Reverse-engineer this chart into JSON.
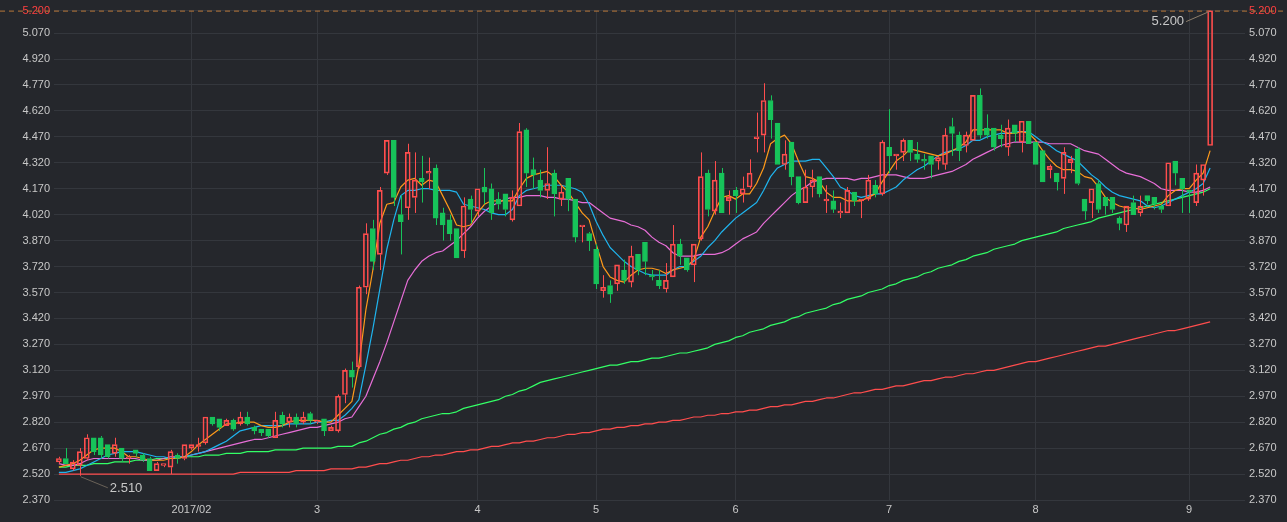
{
  "chart_data": {
    "type": "candlestick",
    "categories": [
      null,
      null,
      null,
      null,
      null,
      null,
      null,
      null,
      null,
      null,
      null,
      null,
      null,
      null,
      null,
      null,
      null,
      null,
      null,
      "2017/02",
      null,
      null,
      null,
      null,
      null,
      null,
      null,
      null,
      null,
      null,
      null,
      null,
      null,
      null,
      null,
      null,
      null,
      "3",
      null,
      null,
      null,
      null,
      null,
      null,
      null,
      null,
      null,
      null,
      null,
      null,
      null,
      null,
      null,
      null,
      null,
      null,
      null,
      null,
      null,
      null,
      "4",
      null,
      null,
      null,
      null,
      null,
      null,
      null,
      null,
      null,
      null,
      null,
      null,
      null,
      null,
      null,
      null,
      "5",
      null,
      null,
      null,
      null,
      null,
      null,
      null,
      null,
      null,
      null,
      null,
      null,
      null,
      null,
      null,
      null,
      null,
      null,
      null,
      "6",
      null,
      null,
      null,
      null,
      null,
      null,
      null,
      null,
      null,
      null,
      null,
      null,
      null,
      null,
      null,
      null,
      null,
      null,
      null,
      null,
      null,
      "7",
      null,
      null,
      null,
      null,
      null,
      null,
      null,
      null,
      null,
      null,
      null,
      null,
      null,
      null,
      null,
      null,
      null,
      null,
      null,
      null,
      "8",
      null,
      null,
      null,
      null,
      null,
      null,
      null,
      null,
      null,
      null,
      null,
      null,
      null,
      null,
      null,
      null,
      null,
      null,
      null,
      null,
      null,
      "9",
      null,
      null,
      null
    ],
    "ohlc": [
      [
        2.59,
        2.62,
        2.58,
        2.61
      ],
      [
        2.61,
        2.67,
        2.58,
        2.58
      ],
      [
        2.55,
        2.6,
        2.54,
        2.59
      ],
      [
        2.57,
        2.67,
        2.51,
        2.65
      ],
      [
        2.61,
        2.75,
        2.6,
        2.73
      ],
      [
        2.73,
        2.73,
        2.63,
        2.65
      ],
      [
        2.73,
        2.74,
        2.61,
        2.63
      ],
      [
        2.69,
        2.69,
        2.61,
        2.62
      ],
      [
        2.64,
        2.73,
        2.62,
        2.69
      ],
      [
        2.67,
        2.67,
        2.59,
        2.61
      ],
      [
        2.61,
        2.63,
        2.58,
        2.62
      ],
      [
        2.66,
        2.66,
        2.62,
        2.64
      ],
      [
        2.63,
        2.64,
        2.59,
        2.6
      ],
      [
        2.61,
        2.62,
        2.54,
        2.54
      ],
      [
        2.54,
        2.59,
        2.54,
        2.58
      ],
      [
        2.57,
        2.58,
        2.56,
        2.58
      ],
      [
        2.56,
        2.66,
        2.52,
        2.65
      ],
      [
        2.63,
        2.64,
        2.58,
        2.61
      ],
      [
        2.61,
        2.69,
        2.6,
        2.69
      ],
      [
        2.67,
        2.69,
        2.66,
        2.69
      ],
      [
        2.68,
        2.73,
        2.65,
        2.69
      ],
      [
        2.7,
        2.85,
        2.69,
        2.85
      ],
      [
        2.85,
        2.85,
        2.8,
        2.81
      ],
      [
        2.84,
        2.84,
        2.77,
        2.79
      ],
      [
        2.8,
        2.84,
        2.8,
        2.83
      ],
      [
        2.83,
        2.84,
        2.77,
        2.78
      ],
      [
        2.81,
        2.88,
        2.8,
        2.85
      ],
      [
        2.85,
        2.88,
        2.8,
        2.81
      ],
      [
        2.79,
        2.8,
        2.75,
        2.77
      ],
      [
        2.78,
        2.78,
        2.74,
        2.76
      ],
      [
        2.78,
        2.78,
        2.73,
        2.74
      ],
      [
        2.73,
        2.88,
        2.73,
        2.83
      ],
      [
        2.86,
        2.88,
        2.79,
        2.81
      ],
      [
        2.82,
        2.87,
        2.79,
        2.85
      ],
      [
        2.85,
        2.87,
        2.79,
        2.81
      ],
      [
        2.82,
        2.88,
        2.81,
        2.85
      ],
      [
        2.87,
        2.88,
        2.81,
        2.83
      ],
      [
        2.82,
        2.83,
        2.81,
        2.83
      ],
      [
        2.84,
        2.84,
        2.74,
        2.77
      ],
      [
        2.77,
        2.8,
        2.77,
        2.79
      ],
      [
        2.77,
        2.98,
        2.76,
        2.97
      ],
      [
        2.98,
        3.13,
        2.93,
        3.12
      ],
      [
        3.12,
        3.17,
        3.02,
        3.08
      ],
      [
        3.14,
        3.61,
        3.13,
        3.6
      ],
      [
        3.6,
        3.97,
        3.56,
        3.91
      ],
      [
        3.94,
        3.99,
        3.7,
        3.75
      ],
      [
        3.79,
        4.18,
        3.7,
        4.16
      ],
      [
        4.26,
        4.45,
        4.25,
        4.45
      ],
      [
        4.45,
        4.45,
        4.07,
        4.12
      ],
      [
        4.02,
        4.13,
        3.79,
        3.98
      ],
      [
        4.06,
        4.43,
        3.99,
        4.38
      ],
      [
        4.12,
        4.38,
        4.03,
        4.22
      ],
      [
        4.23,
        4.36,
        4.09,
        4.21
      ],
      [
        4.26,
        4.35,
        4.17,
        4.27
      ],
      [
        4.29,
        4.31,
        3.96,
        4.0
      ],
      [
        4.03,
        4.06,
        3.87,
        3.96
      ],
      [
        3.99,
        4.02,
        3.87,
        3.91
      ],
      [
        3.94,
        3.94,
        3.77,
        3.77
      ],
      [
        3.81,
        4.12,
        3.77,
        4.07
      ],
      [
        4.11,
        4.13,
        3.97,
        4.05
      ],
      [
        4.04,
        4.17,
        4.01,
        4.17
      ],
      [
        4.18,
        4.29,
        4.08,
        4.15
      ],
      [
        4.17,
        4.2,
        3.99,
        4.03
      ],
      [
        4.11,
        4.15,
        4.05,
        4.08
      ],
      [
        4.14,
        4.14,
        4.01,
        4.05
      ],
      [
        3.99,
        4.16,
        3.98,
        4.12
      ],
      [
        4.07,
        4.55,
        4.07,
        4.5
      ],
      [
        4.51,
        4.52,
        4.18,
        4.26
      ],
      [
        4.28,
        4.35,
        4.17,
        4.25
      ],
      [
        4.22,
        4.28,
        4.12,
        4.16
      ],
      [
        4.16,
        4.41,
        4.11,
        4.2
      ],
      [
        4.26,
        4.28,
        4.01,
        4.14
      ],
      [
        4.11,
        4.19,
        4.07,
        4.15
      ],
      [
        4.23,
        4.23,
        4.04,
        4.11
      ],
      [
        4.11,
        4.11,
        3.86,
        3.89
      ],
      [
        3.95,
        3.96,
        3.86,
        3.96
      ],
      [
        3.91,
        3.92,
        3.81,
        3.87
      ],
      [
        3.82,
        3.85,
        3.59,
        3.62
      ],
      [
        3.58,
        3.67,
        3.54,
        3.6
      ],
      [
        3.61,
        3.64,
        3.51,
        3.56
      ],
      [
        3.62,
        3.73,
        3.58,
        3.73
      ],
      [
        3.7,
        3.76,
        3.62,
        3.64
      ],
      [
        3.63,
        3.84,
        3.6,
        3.78
      ],
      [
        3.79,
        3.79,
        3.67,
        3.7
      ],
      [
        3.86,
        3.86,
        3.67,
        3.75
      ],
      [
        3.67,
        3.7,
        3.64,
        3.66
      ],
      [
        3.64,
        3.7,
        3.59,
        3.61
      ],
      [
        3.59,
        3.74,
        3.57,
        3.64
      ],
      [
        3.66,
        3.96,
        3.66,
        3.85
      ],
      [
        3.85,
        3.88,
        3.73,
        3.78
      ],
      [
        3.77,
        3.77,
        3.69,
        3.7
      ],
      [
        3.73,
        3.85,
        3.63,
        3.85
      ],
      [
        3.88,
        4.38,
        3.87,
        4.24
      ],
      [
        4.26,
        4.28,
        4.01,
        4.05
      ],
      [
        4.04,
        4.33,
        4.02,
        4.22
      ],
      [
        4.26,
        4.29,
        4.03,
        4.03
      ],
      [
        4.1,
        4.16,
        4.02,
        4.12
      ],
      [
        4.16,
        4.18,
        4.03,
        4.13
      ],
      [
        4.14,
        4.24,
        4.09,
        4.17
      ],
      [
        4.18,
        4.34,
        4.17,
        4.26
      ],
      [
        4.46,
        4.61,
        4.38,
        4.47
      ],
      [
        4.48,
        4.78,
        4.38,
        4.68
      ],
      [
        4.68,
        4.71,
        4.46,
        4.57
      ],
      [
        4.55,
        4.55,
        4.31,
        4.31
      ],
      [
        4.31,
        4.45,
        4.28,
        4.37
      ],
      [
        4.44,
        4.44,
        4.19,
        4.24
      ],
      [
        4.24,
        4.24,
        4.08,
        4.09
      ],
      [
        4.09,
        4.28,
        4.09,
        4.18
      ],
      [
        4.18,
        4.28,
        4.12,
        4.22
      ],
      [
        4.24,
        4.24,
        4.12,
        4.14
      ],
      [
        4.1,
        4.19,
        4.03,
        4.11
      ],
      [
        4.1,
        4.16,
        4.03,
        4.05
      ],
      [
        4.03,
        4.09,
        4.0,
        4.04
      ],
      [
        4.03,
        4.18,
        4.03,
        4.16
      ],
      [
        4.15,
        4.15,
        4.07,
        4.1
      ],
      [
        4.1,
        4.11,
        4.0,
        4.11
      ],
      [
        4.11,
        4.25,
        4.1,
        4.22
      ],
      [
        4.19,
        4.22,
        4.12,
        4.14
      ],
      [
        4.14,
        4.45,
        4.13,
        4.44
      ],
      [
        4.41,
        4.63,
        4.26,
        4.36
      ],
      [
        4.36,
        4.37,
        4.28,
        4.37
      ],
      [
        4.38,
        4.46,
        4.33,
        4.45
      ],
      [
        4.45,
        4.45,
        4.33,
        4.38
      ],
      [
        4.37,
        4.44,
        4.32,
        4.34
      ],
      [
        4.34,
        4.37,
        4.28,
        4.33
      ],
      [
        4.36,
        4.36,
        4.23,
        4.31
      ],
      [
        4.33,
        4.36,
        4.28,
        4.35
      ],
      [
        4.31,
        4.52,
        4.28,
        4.48
      ],
      [
        4.53,
        4.58,
        4.36,
        4.49
      ],
      [
        4.48,
        4.5,
        4.33,
        4.39
      ],
      [
        4.42,
        4.5,
        4.38,
        4.48
      ],
      [
        4.45,
        4.71,
        4.45,
        4.71
      ],
      [
        4.71,
        4.75,
        4.46,
        4.48
      ],
      [
        4.52,
        4.6,
        4.46,
        4.48
      ],
      [
        4.52,
        4.52,
        4.39,
        4.41
      ],
      [
        4.48,
        4.54,
        4.41,
        4.46
      ],
      [
        4.41,
        4.57,
        4.36,
        4.52
      ],
      [
        4.54,
        4.54,
        4.44,
        4.49
      ],
      [
        4.44,
        4.56,
        4.38,
        4.56
      ],
      [
        4.56,
        4.56,
        4.43,
        4.43
      ],
      [
        4.44,
        4.44,
        4.31,
        4.31
      ],
      [
        4.39,
        4.39,
        4.21,
        4.21
      ],
      [
        4.28,
        4.31,
        4.23,
        4.3
      ],
      [
        4.26,
        4.26,
        4.16,
        4.21
      ],
      [
        4.23,
        4.41,
        4.14,
        4.38
      ],
      [
        4.32,
        4.36,
        4.26,
        4.34
      ],
      [
        4.4,
        4.41,
        4.19,
        4.2
      ],
      [
        4.11,
        4.11,
        3.99,
        4.04
      ],
      [
        4.09,
        4.17,
        4.0,
        4.17
      ],
      [
        4.2,
        4.22,
        4.03,
        4.05
      ],
      [
        4.12,
        4.12,
        4.02,
        4.07
      ],
      [
        4.12,
        4.12,
        4.03,
        4.05
      ],
      [
        4.0,
        4.01,
        3.93,
        3.97
      ],
      [
        3.96,
        4.07,
        3.92,
        4.07
      ],
      [
        4.09,
        4.13,
        4.02,
        4.02
      ],
      [
        4.03,
        4.13,
        4.01,
        4.07
      ],
      [
        4.13,
        4.13,
        4.08,
        4.1
      ],
      [
        4.12,
        4.12,
        4.05,
        4.08
      ],
      [
        4.07,
        4.08,
        4.03,
        4.05
      ],
      [
        4.07,
        4.32,
        4.07,
        4.32
      ],
      [
        4.33,
        4.33,
        4.19,
        4.26
      ],
      [
        4.23,
        4.23,
        4.03,
        4.17
      ],
      [
        4.16,
        4.16,
        4.03,
        4.15
      ],
      [
        4.09,
        4.31,
        4.07,
        4.26
      ],
      [
        4.22,
        4.31,
        4.13,
        4.31
      ],
      [
        4.42,
        5.2,
        4.42,
        5.2
      ]
    ],
    "colors": [
      "#ff4d4d",
      "#17c35a",
      "#ff4d4d",
      "#ff4d4d",
      "#ff4d4d",
      "#17c35a",
      "#17c35a",
      "#17c35a",
      "#ff4d4d",
      "#17c35a",
      "#ff4d4d",
      "#17c35a",
      "#17c35a",
      "#17c35a",
      "#ff4d4d",
      "#ff4d4d",
      "#ff4d4d",
      "#17c35a",
      "#ff4d4d",
      "#ff4d4d",
      "#ff4d4d",
      "#ff4d4d",
      "#17c35a",
      "#17c35a",
      "#ff4d4d",
      "#17c35a",
      "#ff4d4d",
      "#17c35a",
      "#17c35a",
      "#17c35a",
      "#17c35a",
      "#ff4d4d",
      "#17c35a",
      "#ff4d4d",
      "#17c35a",
      "#ff4d4d",
      "#17c35a",
      "#ff4d4d",
      "#17c35a",
      "#ff4d4d",
      "#ff4d4d",
      "#ff4d4d",
      "#17c35a",
      "#ff4d4d",
      "#ff4d4d",
      "#17c35a",
      "#ff4d4d",
      "#ff4d4d",
      "#17c35a",
      "#17c35a",
      "#ff4d4d",
      "#ff4d4d",
      "#17c35a",
      "#ff4d4d",
      "#17c35a",
      "#17c35a",
      "#17c35a",
      "#17c35a",
      "#ff4d4d",
      "#17c35a",
      "#ff4d4d",
      "#17c35a",
      "#17c35a",
      "#17c35a",
      "#17c35a",
      "#ff4d4d",
      "#ff4d4d",
      "#17c35a",
      "#17c35a",
      "#17c35a",
      "#ff4d4d",
      "#17c35a",
      "#ff4d4d",
      "#17c35a",
      "#17c35a",
      "#ff4d4d",
      "#17c35a",
      "#17c35a",
      "#ff4d4d",
      "#17c35a",
      "#ff4d4d",
      "#17c35a",
      "#ff4d4d",
      "#17c35a",
      "#17c35a",
      "#17c35a",
      "#17c35a",
      "#ff4d4d",
      "#ff4d4d",
      "#17c35a",
      "#17c35a",
      "#ff4d4d",
      "#ff4d4d",
      "#17c35a",
      "#ff4d4d",
      "#17c35a",
      "#ff4d4d",
      "#17c35a",
      "#ff4d4d",
      "#ff4d4d",
      "#ff4d4d",
      "#ff4d4d",
      "#17c35a",
      "#17c35a",
      "#ff4d4d",
      "#17c35a",
      "#17c35a",
      "#ff4d4d",
      "#ff4d4d",
      "#17c35a",
      "#ff4d4d",
      "#17c35a",
      "#ff4d4d",
      "#ff4d4d",
      "#17c35a",
      "#ff4d4d",
      "#ff4d4d",
      "#17c35a",
      "#ff4d4d",
      "#17c35a",
      "#ff4d4d",
      "#ff4d4d",
      "#17c35a",
      "#17c35a",
      "#17c35a",
      "#17c35a",
      "#ff4d4d",
      "#ff4d4d",
      "#17c35a",
      "#17c35a",
      "#ff4d4d",
      "#ff4d4d",
      "#17c35a",
      "#17c35a",
      "#17c35a",
      "#17c35a",
      "#ff4d4d",
      "#17c35a",
      "#ff4d4d",
      "#17c35a",
      "#17c35a",
      "#17c35a",
      "#ff4d4d",
      "#17c35a",
      "#ff4d4d",
      "#ff4d4d",
      "#17c35a",
      "#17c35a",
      "#ff4d4d",
      "#17c35a",
      "#17c35a",
      "#17c35a",
      "#17c35a",
      "#ff4d4d",
      "#17c35a",
      "#ff4d4d",
      "#17c35a",
      "#17c35a",
      "#17c35a",
      "#ff4d4d",
      "#17c35a",
      "#17c35a",
      "#17c35a",
      "#ff4d4d",
      "#ff4d4d",
      "#ff4d4d"
    ],
    "series": [
      {
        "type": "line",
        "color": "#ff9a1a",
        "values": [
          2.56,
          2.57,
          2.58,
          2.6,
          2.63,
          2.66,
          2.67,
          2.67,
          2.67,
          2.65,
          2.62,
          2.62,
          2.61,
          2.6,
          2.6,
          2.6,
          2.61,
          2.61,
          2.62,
          2.65,
          2.69,
          2.72,
          2.75,
          2.78,
          2.81,
          2.81,
          2.82,
          2.82,
          2.82,
          2.8,
          2.79,
          2.79,
          2.8,
          2.82,
          2.83,
          2.83,
          2.83,
          2.83,
          2.82,
          2.82,
          2.86,
          2.9,
          2.94,
          3.15,
          3.47,
          3.7,
          3.97,
          4.08,
          4.09,
          4.18,
          4.22,
          4.23,
          4.19,
          4.22,
          4.21,
          4.13,
          4.05,
          3.96,
          3.95,
          3.96,
          4.03,
          4.08,
          4.1,
          4.1,
          4.1,
          4.1,
          4.17,
          4.23,
          4.25,
          4.26,
          4.27,
          4.24,
          4.19,
          4.15,
          4.09,
          4.03,
          3.99,
          3.85,
          3.72,
          3.66,
          3.64,
          3.63,
          3.67,
          3.7,
          3.71,
          3.71,
          3.7,
          3.68,
          3.7,
          3.71,
          3.72,
          3.76,
          3.89,
          3.95,
          4.04,
          4.12,
          4.13,
          4.11,
          4.14,
          4.14,
          4.2,
          4.29,
          4.43,
          4.46,
          4.48,
          4.43,
          4.33,
          4.24,
          4.23,
          4.21,
          4.15,
          4.12,
          4.12,
          4.1,
          4.1,
          4.1,
          4.12,
          4.14,
          4.21,
          4.27,
          4.33,
          4.36,
          4.4,
          4.39,
          4.38,
          4.37,
          4.36,
          4.37,
          4.39,
          4.41,
          4.44,
          4.51,
          4.51,
          4.51,
          4.51,
          4.51,
          4.49,
          4.49,
          4.5,
          4.49,
          4.45,
          4.39,
          4.34,
          4.3,
          4.28,
          4.28,
          4.27,
          4.24,
          4.23,
          4.18,
          4.12,
          4.09,
          4.07,
          4.06,
          4.06,
          4.05,
          4.06,
          4.07,
          4.08,
          4.13,
          4.16,
          4.17,
          4.17,
          4.22,
          4.26,
          4.39
        ]
      },
      {
        "type": "line",
        "color": "#1fb4ee",
        "values": [
          2.53,
          2.53,
          2.54,
          2.55,
          2.57,
          2.59,
          2.61,
          2.63,
          2.64,
          2.65,
          2.65,
          2.65,
          2.64,
          2.63,
          2.62,
          2.62,
          2.61,
          2.62,
          2.62,
          2.63,
          2.64,
          2.65,
          2.67,
          2.69,
          2.71,
          2.74,
          2.77,
          2.78,
          2.79,
          2.8,
          2.8,
          2.8,
          2.8,
          2.81,
          2.81,
          2.81,
          2.81,
          2.82,
          2.82,
          2.83,
          2.83,
          2.86,
          2.9,
          2.95,
          3.15,
          3.36,
          3.59,
          3.82,
          3.99,
          4.13,
          4.16,
          4.16,
          4.17,
          4.17,
          4.16,
          4.16,
          4.16,
          4.15,
          4.08,
          4.07,
          4.06,
          4.05,
          4.03,
          4.02,
          4.02,
          4.05,
          4.13,
          4.16,
          4.17,
          4.18,
          4.19,
          4.19,
          4.19,
          4.18,
          4.17,
          4.15,
          4.08,
          3.98,
          3.9,
          3.83,
          3.79,
          3.75,
          3.72,
          3.7,
          3.68,
          3.67,
          3.67,
          3.67,
          3.7,
          3.72,
          3.72,
          3.75,
          3.78,
          3.83,
          3.87,
          3.92,
          3.96,
          4.0,
          4.03,
          4.06,
          4.09,
          4.16,
          4.24,
          4.29,
          4.31,
          4.33,
          4.33,
          4.33,
          4.34,
          4.34,
          4.29,
          4.24,
          4.18,
          4.16,
          4.13,
          4.12,
          4.13,
          4.14,
          4.14,
          4.16,
          4.18,
          4.22,
          4.25,
          4.28,
          4.3,
          4.33,
          4.36,
          4.38,
          4.39,
          4.4,
          4.42,
          4.45,
          4.45,
          4.47,
          4.48,
          4.49,
          4.49,
          4.5,
          4.5,
          4.5,
          4.47,
          4.44,
          4.42,
          4.39,
          4.37,
          4.35,
          4.33,
          4.29,
          4.25,
          4.22,
          4.18,
          4.15,
          4.13,
          4.12,
          4.11,
          4.1,
          4.07,
          4.06,
          4.07,
          4.09,
          4.11,
          4.13,
          4.15,
          4.17,
          4.2,
          4.29
        ]
      },
      {
        "type": "line",
        "color": "#e86ed8",
        "values": [
          2.58,
          2.57,
          2.57,
          2.58,
          2.6,
          2.61,
          2.61,
          2.61,
          2.61,
          2.61,
          2.61,
          2.61,
          2.6,
          2.6,
          2.6,
          2.61,
          2.62,
          2.62,
          2.62,
          2.63,
          2.64,
          2.65,
          2.66,
          2.67,
          2.68,
          2.69,
          2.7,
          2.71,
          2.72,
          2.72,
          2.73,
          2.74,
          2.75,
          2.76,
          2.77,
          2.78,
          2.79,
          2.79,
          2.8,
          2.81,
          2.82,
          2.84,
          2.85,
          2.91,
          2.97,
          3.07,
          3.17,
          3.28,
          3.4,
          3.52,
          3.64,
          3.7,
          3.75,
          3.78,
          3.8,
          3.81,
          3.84,
          3.87,
          3.91,
          3.95,
          4.0,
          4.04,
          4.07,
          4.09,
          4.11,
          4.12,
          4.12,
          4.13,
          4.13,
          4.13,
          4.12,
          4.12,
          4.11,
          4.11,
          4.1,
          4.09,
          4.09,
          4.06,
          4.03,
          4.0,
          3.99,
          3.98,
          3.96,
          3.95,
          3.93,
          3.89,
          3.86,
          3.84,
          3.8,
          3.78,
          3.78,
          3.78,
          3.79,
          3.79,
          3.79,
          3.8,
          3.82,
          3.85,
          3.88,
          3.9,
          3.92,
          3.97,
          4.01,
          4.05,
          4.09,
          4.13,
          4.16,
          4.18,
          4.21,
          4.22,
          4.23,
          4.23,
          4.23,
          4.23,
          4.22,
          4.23,
          4.23,
          4.24,
          4.25,
          4.25,
          4.25,
          4.24,
          4.23,
          4.23,
          4.23,
          4.24,
          4.25,
          4.26,
          4.27,
          4.29,
          4.31,
          4.34,
          4.36,
          4.38,
          4.4,
          4.42,
          4.43,
          4.44,
          4.44,
          4.44,
          4.44,
          4.44,
          4.43,
          4.43,
          4.43,
          4.43,
          4.41,
          4.39,
          4.38,
          4.37,
          4.34,
          4.31,
          4.28,
          4.26,
          4.25,
          4.24,
          4.22,
          4.2,
          4.17,
          4.16,
          4.16,
          4.16,
          4.15,
          4.15,
          4.16,
          4.18
        ]
      },
      {
        "type": "line",
        "color": "#33ff66",
        "values": [
          2.56,
          2.56,
          2.57,
          2.57,
          2.57,
          2.58,
          2.58,
          2.58,
          2.59,
          2.59,
          2.59,
          2.6,
          2.6,
          2.6,
          2.61,
          2.61,
          2.61,
          2.61,
          2.62,
          2.62,
          2.62,
          2.63,
          2.63,
          2.63,
          2.64,
          2.64,
          2.64,
          2.65,
          2.65,
          2.65,
          2.65,
          2.66,
          2.66,
          2.66,
          2.66,
          2.67,
          2.67,
          2.67,
          2.67,
          2.67,
          2.68,
          2.68,
          2.68,
          2.7,
          2.71,
          2.73,
          2.75,
          2.76,
          2.78,
          2.79,
          2.81,
          2.82,
          2.84,
          2.85,
          2.86,
          2.87,
          2.87,
          2.88,
          2.9,
          2.91,
          2.92,
          2.93,
          2.94,
          2.95,
          2.97,
          2.98,
          3.0,
          3.01,
          3.03,
          3.05,
          3.06,
          3.07,
          3.08,
          3.09,
          3.1,
          3.11,
          3.12,
          3.13,
          3.14,
          3.15,
          3.15,
          3.16,
          3.17,
          3.17,
          3.18,
          3.19,
          3.19,
          3.2,
          3.21,
          3.22,
          3.22,
          3.23,
          3.24,
          3.25,
          3.27,
          3.28,
          3.29,
          3.31,
          3.32,
          3.34,
          3.35,
          3.36,
          3.38,
          3.39,
          3.4,
          3.42,
          3.43,
          3.45,
          3.46,
          3.47,
          3.48,
          3.5,
          3.51,
          3.53,
          3.54,
          3.55,
          3.57,
          3.58,
          3.59,
          3.61,
          3.62,
          3.64,
          3.65,
          3.66,
          3.68,
          3.69,
          3.71,
          3.72,
          3.73,
          3.75,
          3.76,
          3.78,
          3.79,
          3.8,
          3.82,
          3.83,
          3.84,
          3.85,
          3.87,
          3.88,
          3.89,
          3.9,
          3.91,
          3.92,
          3.94,
          3.95,
          3.96,
          3.97,
          3.98,
          4.0,
          4.01,
          4.02,
          4.03,
          4.04,
          4.05,
          4.06,
          4.07,
          4.08,
          4.09,
          4.1,
          4.11,
          4.12,
          4.13,
          4.14,
          4.15,
          4.17
        ]
      },
      {
        "type": "line",
        "color": "#ff4d4d",
        "values": [
          2.52,
          2.52,
          2.52,
          2.52,
          2.52,
          2.52,
          2.52,
          2.52,
          2.52,
          2.52,
          2.52,
          2.52,
          2.52,
          2.52,
          2.52,
          2.52,
          2.52,
          2.52,
          2.52,
          2.52,
          2.52,
          2.52,
          2.52,
          2.52,
          2.52,
          2.52,
          2.53,
          2.53,
          2.53,
          2.53,
          2.53,
          2.53,
          2.53,
          2.53,
          2.54,
          2.54,
          2.54,
          2.54,
          2.54,
          2.55,
          2.55,
          2.55,
          2.55,
          2.56,
          2.56,
          2.57,
          2.58,
          2.58,
          2.59,
          2.6,
          2.6,
          2.61,
          2.62,
          2.62,
          2.63,
          2.63,
          2.64,
          2.65,
          2.65,
          2.66,
          2.66,
          2.67,
          2.68,
          2.68,
          2.69,
          2.7,
          2.7,
          2.71,
          2.71,
          2.72,
          2.73,
          2.73,
          2.74,
          2.75,
          2.75,
          2.76,
          2.76,
          2.77,
          2.78,
          2.78,
          2.79,
          2.79,
          2.8,
          2.8,
          2.81,
          2.81,
          2.82,
          2.82,
          2.83,
          2.83,
          2.84,
          2.85,
          2.85,
          2.86,
          2.86,
          2.87,
          2.87,
          2.88,
          2.88,
          2.89,
          2.89,
          2.9,
          2.91,
          2.91,
          2.92,
          2.92,
          2.93,
          2.94,
          2.94,
          2.95,
          2.96,
          2.96,
          2.97,
          2.98,
          2.99,
          2.99,
          3.0,
          3.01,
          3.01,
          3.02,
          3.03,
          3.03,
          3.04,
          3.05,
          3.06,
          3.06,
          3.07,
          3.08,
          3.08,
          3.09,
          3.1,
          3.1,
          3.11,
          3.12,
          3.12,
          3.13,
          3.14,
          3.15,
          3.16,
          3.17,
          3.17,
          3.18,
          3.19,
          3.2,
          3.21,
          3.22,
          3.23,
          3.24,
          3.25,
          3.26,
          3.26,
          3.27,
          3.28,
          3.29,
          3.3,
          3.31,
          3.32,
          3.33,
          3.34,
          3.35,
          3.35,
          3.36,
          3.37,
          3.38,
          3.39,
          3.4
        ]
      }
    ],
    "ylim": [
      2.37,
      5.2
    ],
    "yticks": [
      {
        "value": 2.37,
        "label": "2.370"
      },
      {
        "value": 2.52,
        "label": "2.520"
      },
      {
        "value": 2.67,
        "label": "2.670"
      },
      {
        "value": 2.82,
        "label": "2.820"
      },
      {
        "value": 2.97,
        "label": "2.970"
      },
      {
        "value": 3.12,
        "label": "3.120"
      },
      {
        "value": 3.27,
        "label": "3.270"
      },
      {
        "value": 3.42,
        "label": "3.420"
      },
      {
        "value": 3.57,
        "label": "3.570"
      },
      {
        "value": 3.72,
        "label": "3.720"
      },
      {
        "value": 3.87,
        "label": "3.870"
      },
      {
        "value": 4.02,
        "label": "4.020"
      },
      {
        "value": 4.17,
        "label": "4.170"
      },
      {
        "value": 4.32,
        "label": "4.320"
      },
      {
        "value": 4.47,
        "label": "4.470"
      },
      {
        "value": 4.62,
        "label": "4.620"
      },
      {
        "value": 4.77,
        "label": "4.770"
      },
      {
        "value": 4.92,
        "label": "4.920"
      },
      {
        "value": 5.07,
        "label": "5.070"
      },
      {
        "value": 5.2,
        "label": "5.200"
      }
    ],
    "y2lim": [
      2.37,
      5.2
    ],
    "y2ticks": [
      {
        "value": 2.37,
        "label": "2.370"
      },
      {
        "value": 2.52,
        "label": "2.520"
      },
      {
        "value": 2.67,
        "label": "2.670"
      },
      {
        "value": 2.82,
        "label": "2.820"
      },
      {
        "value": 2.97,
        "label": "2.970"
      },
      {
        "value": 3.12,
        "label": "3.120"
      },
      {
        "value": 3.27,
        "label": "3.270"
      },
      {
        "value": 3.42,
        "label": "3.420"
      },
      {
        "value": 3.57,
        "label": "3.570"
      },
      {
        "value": 3.72,
        "label": "3.720"
      },
      {
        "value": 3.87,
        "label": "3.870"
      },
      {
        "value": 4.02,
        "label": "4.020"
      },
      {
        "value": 4.17,
        "label": "4.170"
      },
      {
        "value": 4.32,
        "label": "4.320"
      },
      {
        "value": 4.47,
        "label": "4.470"
      },
      {
        "value": 4.62,
        "label": "4.620"
      },
      {
        "value": 4.77,
        "label": "4.770"
      },
      {
        "value": 4.92,
        "label": "4.920"
      },
      {
        "value": 5.07,
        "label": "5.070"
      },
      {
        "value": 5.2,
        "label": "5.200"
      }
    ],
    "grid": true,
    "ref_lines": [
      {
        "axis": "y",
        "value": 5.2,
        "color": "#b8783a",
        "line_style": "dashed"
      }
    ],
    "annotations": [
      {
        "text": "5.200",
        "y": 5.2
      },
      {
        "text": "2.510",
        "y": 2.51
      }
    ]
  }
}
